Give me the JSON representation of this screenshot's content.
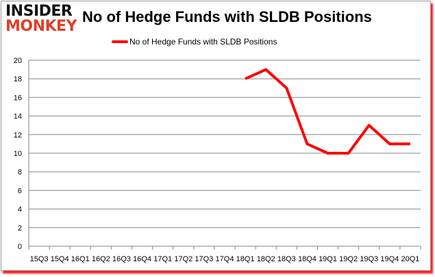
{
  "logo": {
    "line1": "INSIDER",
    "line2": "MONKEY"
  },
  "chart_data": {
    "type": "line",
    "title": "No of Hedge Funds with SLDB Positions",
    "xlabel": "",
    "ylabel": "",
    "categories": [
      "15Q3",
      "15Q4",
      "16Q1",
      "16Q2",
      "16Q3",
      "16Q4",
      "17Q1",
      "17Q2",
      "17Q3",
      "17Q4",
      "18Q1",
      "18Q2",
      "18Q3",
      "18Q4",
      "19Q1",
      "19Q2",
      "19Q3",
      "19Q4",
      "20Q1"
    ],
    "series": [
      {
        "name": "No of Hedge Funds with SLDB Positions",
        "color": "#ff0000",
        "values": [
          null,
          null,
          null,
          null,
          null,
          null,
          null,
          null,
          null,
          null,
          18,
          19,
          17,
          11,
          10,
          10,
          13,
          11,
          11
        ]
      }
    ],
    "ylim": [
      0,
      20
    ],
    "yticks": [
      0,
      2,
      4,
      6,
      8,
      10,
      12,
      14,
      16,
      18,
      20
    ],
    "grid": true,
    "legend": "top-center"
  }
}
